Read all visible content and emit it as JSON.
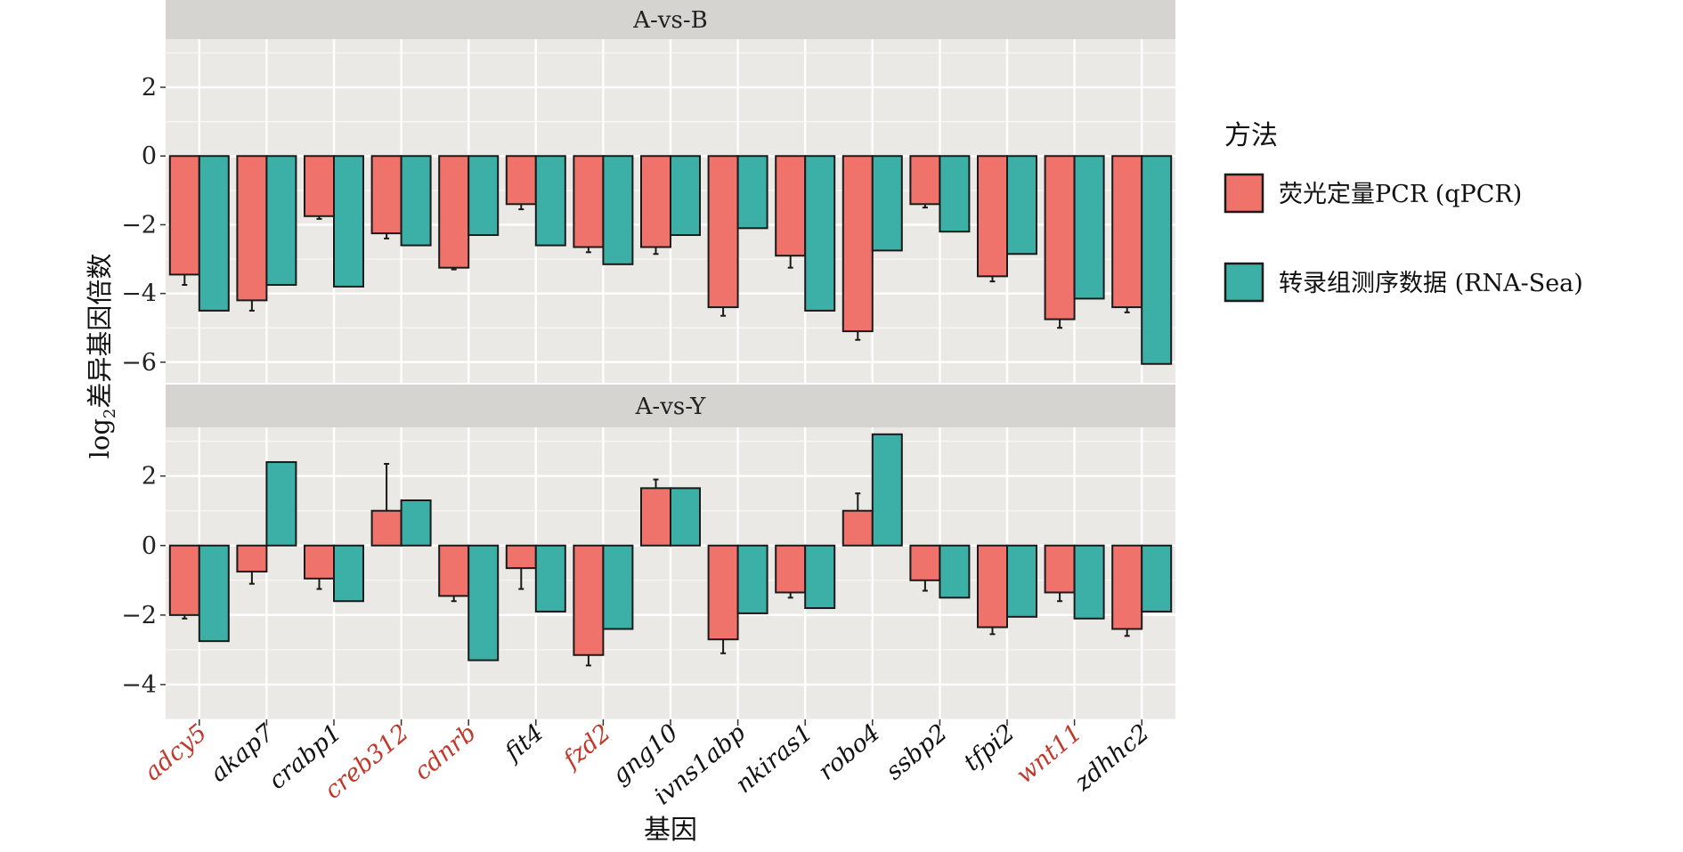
{
  "chart_data": {
    "type": "bar",
    "xlabel": "基因",
    "ylabel": "log₂差异基因倍数",
    "ylabel_main": "log",
    "ylabel_sub": "2",
    "ylabel_rest": "差异基因倍数",
    "categories": [
      "adcy5",
      "akap7",
      "crabp1",
      "creb312",
      "cdnrb",
      "fit4",
      "fzd2",
      "gng10",
      "ivns1abp",
      "nkiras1",
      "robo4",
      "ssbp2",
      "tfpi2",
      "wnt11",
      "zdhhc2"
    ],
    "highlighted_categories": [
      "adcy5",
      "creb312",
      "cdnrb",
      "fzd2",
      "wnt11"
    ],
    "legend": {
      "title": "方法",
      "position": "right",
      "items": [
        {
          "label": "荧光定量PCR (qPCR)",
          "color": "#ef736b"
        },
        {
          "label": "转录组测序数据 (RNA-Sea)",
          "color": "#3cb0a6"
        }
      ]
    },
    "colors": {
      "qpcr": "#ef736b",
      "rnaseq": "#3cb0a6",
      "panel_bg": "#ebe9e6",
      "strip_bg": "#d6d4d1",
      "grid": "#ffffff",
      "highlight_label": "#c0392b"
    },
    "grid": true,
    "panels": [
      {
        "title": "A-vs-B",
        "ylim": [
          -6.6,
          3.4
        ],
        "yticks": [
          2,
          0,
          -2,
          -4,
          -6
        ],
        "ytick_labels": [
          "2",
          "0",
          "−2",
          "−4",
          "−6"
        ],
        "series": [
          {
            "name": "荧光定量PCR (qPCR)",
            "values": [
              -3.45,
              -4.2,
              -1.75,
              -2.25,
              -3.25,
              -1.4,
              -2.65,
              -2.65,
              -4.4,
              -2.9,
              -5.1,
              -1.4,
              -3.5,
              -4.75,
              -4.4
            ],
            "errors": [
              0.3,
              0.3,
              0.08,
              0.15,
              0.05,
              0.15,
              0.15,
              0.2,
              0.25,
              0.35,
              0.25,
              0.1,
              0.15,
              0.25,
              0.15
            ]
          },
          {
            "name": "转录组测序数据 (RNA-Sea)",
            "values": [
              -4.5,
              -3.75,
              -3.8,
              -2.6,
              -2.3,
              -2.6,
              -3.15,
              -2.3,
              -2.1,
              -4.5,
              -2.75,
              -2.2,
              -2.85,
              -4.15,
              -6.05
            ]
          }
        ]
      },
      {
        "title": "A-vs-Y",
        "ylim": [
          -5.0,
          3.4
        ],
        "yticks": [
          2,
          0,
          -2,
          -4
        ],
        "ytick_labels": [
          "2",
          "0",
          "−2",
          "−4"
        ],
        "series": [
          {
            "name": "荧光定量PCR (qPCR)",
            "values": [
              -2.0,
              -0.75,
              -0.95,
              1.0,
              -1.45,
              -0.65,
              -3.15,
              1.65,
              -2.7,
              -1.35,
              1.0,
              -1.0,
              -2.35,
              -1.35,
              -2.4
            ],
            "errors": [
              0.1,
              0.35,
              0.3,
              1.35,
              0.15,
              0.6,
              0.3,
              0.25,
              0.4,
              0.15,
              0.5,
              0.3,
              0.2,
              0.25,
              0.2
            ]
          },
          {
            "name": "转录组测序数据 (RNA-Sea)",
            "values": [
              -2.75,
              2.4,
              -1.6,
              1.3,
              -3.3,
              -1.9,
              -2.4,
              1.65,
              -1.95,
              -1.8,
              3.2,
              -1.5,
              -2.05,
              -2.1,
              -1.9
            ]
          }
        ]
      }
    ]
  }
}
